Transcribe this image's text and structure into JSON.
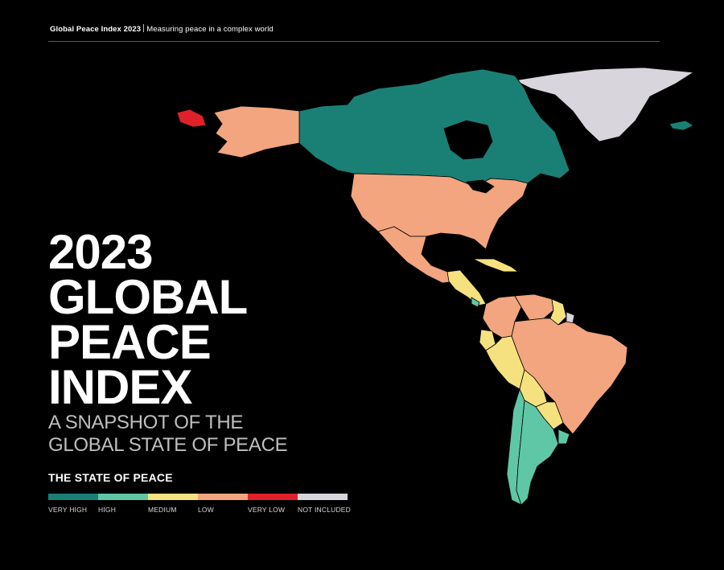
{
  "header": {
    "report_name": "Global Peace Index 2023",
    "tagline": "Measuring peace in a complex world"
  },
  "title": {
    "lines": [
      "2023",
      "GLOBAL",
      "PEACE",
      "INDEX"
    ],
    "subtitle_lines": [
      "A SNAPSHOT OF THE",
      "GLOBAL STATE OF PEACE"
    ]
  },
  "legend": {
    "title": "THE STATE OF PEACE",
    "items": [
      {
        "label": "VERY HIGH",
        "color": "#1a8075"
      },
      {
        "label": "HIGH",
        "color": "#5fc7a5"
      },
      {
        "label": "MEDIUM",
        "color": "#f5e27f"
      },
      {
        "label": "LOW",
        "color": "#f2a57e"
      },
      {
        "label": "VERY LOW",
        "color": "#e0212a"
      },
      {
        "label": "NOT INCLUDED",
        "color": "#d8d6dc"
      }
    ]
  },
  "map": {
    "regions": [
      {
        "name": "Greenland",
        "status": "NOT INCLUDED"
      },
      {
        "name": "Canada",
        "status": "VERY HIGH"
      },
      {
        "name": "Alaska (United States)",
        "status": "LOW"
      },
      {
        "name": "Russia (far east)",
        "status": "VERY LOW"
      },
      {
        "name": "United States",
        "status": "LOW"
      },
      {
        "name": "Mexico",
        "status": "LOW"
      },
      {
        "name": "Central America",
        "status": "MEDIUM"
      },
      {
        "name": "Costa Rica",
        "status": "HIGH"
      },
      {
        "name": "Cuba",
        "status": "MEDIUM"
      },
      {
        "name": "Colombia",
        "status": "LOW"
      },
      {
        "name": "Venezuela",
        "status": "LOW"
      },
      {
        "name": "Guyana",
        "status": "MEDIUM"
      },
      {
        "name": "French Guiana",
        "status": "NOT INCLUDED"
      },
      {
        "name": "Ecuador",
        "status": "MEDIUM"
      },
      {
        "name": "Peru",
        "status": "MEDIUM"
      },
      {
        "name": "Bolivia",
        "status": "MEDIUM"
      },
      {
        "name": "Brazil",
        "status": "LOW"
      },
      {
        "name": "Paraguay",
        "status": "MEDIUM"
      },
      {
        "name": "Chile",
        "status": "HIGH"
      },
      {
        "name": "Argentina",
        "status": "HIGH"
      },
      {
        "name": "Uruguay",
        "status": "HIGH"
      },
      {
        "name": "Iceland",
        "status": "VERY HIGH"
      }
    ]
  }
}
